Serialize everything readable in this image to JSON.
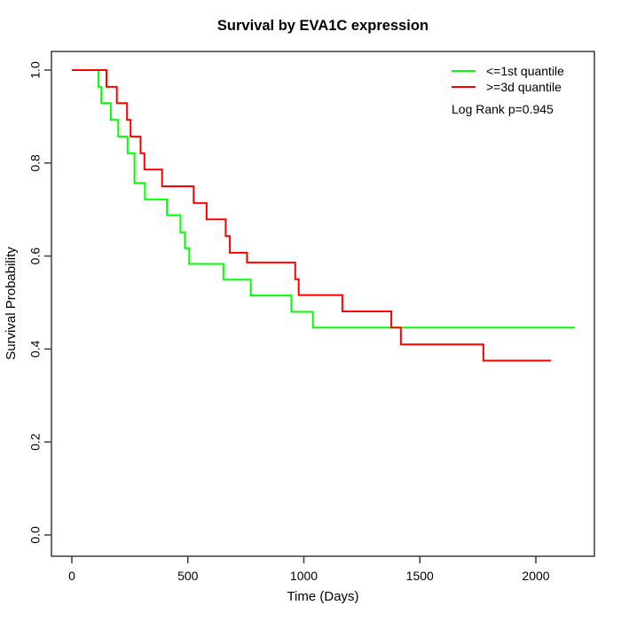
{
  "chart_data": {
    "type": "line",
    "subtype": "kaplan-meier-step",
    "title": "Survival by EVA1C expression",
    "xlabel": "Time (Days)",
    "ylabel": "Survival Probability",
    "xlim": [
      0,
      2200
    ],
    "ylim": [
      0.0,
      1.0
    ],
    "grid": false,
    "legend_position": "top-right",
    "annotation": "Log Rank p=0.945",
    "x_ticks": [
      0,
      500,
      1000,
      1500,
      2000
    ],
    "y_ticks": [
      "0.0",
      "0.2",
      "0.4",
      "0.6",
      "0.8",
      "1.0"
    ],
    "colors": {
      "group1": "#00ff00",
      "group2": "#ff0000",
      "axis": "#3c3c3c",
      "background": "#ffffff"
    },
    "series": [
      {
        "name": "<=1st quantile",
        "color": "#00ff00",
        "points": [
          [
            0,
            1.0
          ],
          [
            115,
            0.964
          ],
          [
            127,
            0.929
          ],
          [
            168,
            0.893
          ],
          [
            200,
            0.857
          ],
          [
            240,
            0.821
          ],
          [
            270,
            0.757
          ],
          [
            315,
            0.722
          ],
          [
            410,
            0.688
          ],
          [
            468,
            0.651
          ],
          [
            487,
            0.617
          ],
          [
            506,
            0.583
          ],
          [
            653,
            0.549
          ],
          [
            771,
            0.515
          ],
          [
            946,
            0.48
          ],
          [
            1039,
            0.446
          ],
          [
            2168,
            0.446
          ]
        ]
      },
      {
        "name": ">=3d quantile",
        "color": "#ff0000",
        "points": [
          [
            0,
            1.0
          ],
          [
            149,
            0.964
          ],
          [
            194,
            0.929
          ],
          [
            238,
            0.893
          ],
          [
            253,
            0.857
          ],
          [
            296,
            0.821
          ],
          [
            313,
            0.786
          ],
          [
            389,
            0.75
          ],
          [
            525,
            0.714
          ],
          [
            581,
            0.679
          ],
          [
            663,
            0.643
          ],
          [
            681,
            0.607
          ],
          [
            755,
            0.586
          ],
          [
            963,
            0.55
          ],
          [
            978,
            0.516
          ],
          [
            1166,
            0.481
          ],
          [
            1377,
            0.446
          ],
          [
            1418,
            0.41
          ],
          [
            1774,
            0.375
          ],
          [
            2065,
            0.375
          ]
        ]
      }
    ]
  }
}
